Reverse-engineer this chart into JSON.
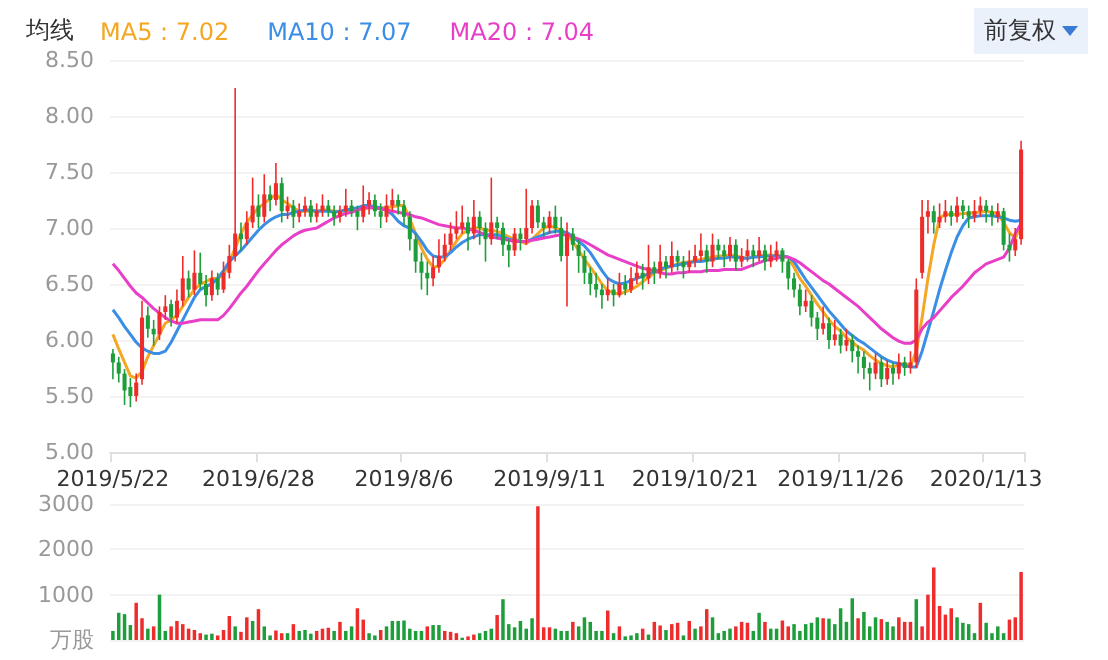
{
  "chart_data": [
    {
      "type": "candlestick",
      "legend_title": "均线",
      "annotations": [
        "前复权"
      ],
      "legend": "top left",
      "grid": "y",
      "marker": "none",
      "categories": [
        "2019/5/22",
        null,
        null,
        null,
        null,
        null,
        null,
        null,
        null,
        null,
        null,
        null,
        null,
        null,
        null,
        null,
        null,
        null,
        null,
        null,
        null,
        null,
        null,
        null,
        null,
        "2019/6/28",
        null,
        null,
        null,
        null,
        null,
        null,
        null,
        null,
        null,
        null,
        null,
        null,
        null,
        null,
        null,
        null,
        null,
        null,
        null,
        null,
        null,
        null,
        null,
        null,
        "2019/8/6",
        null,
        null,
        null,
        null,
        null,
        null,
        null,
        null,
        null,
        null,
        null,
        null,
        null,
        null,
        null,
        null,
        null,
        null,
        null,
        null,
        null,
        null,
        null,
        null,
        "2019/9/11",
        null,
        null,
        null,
        null,
        null,
        null,
        null,
        null,
        null,
        null,
        null,
        null,
        null,
        null,
        null,
        null,
        null,
        null,
        null,
        null,
        null,
        null,
        null,
        null,
        "2019/10/21",
        null,
        null,
        null,
        null,
        null,
        null,
        null,
        null,
        null,
        null,
        null,
        null,
        null,
        null,
        null,
        null,
        null,
        null,
        null,
        null,
        null,
        null,
        null,
        null,
        "2019/11/26",
        null,
        null,
        null,
        null,
        null,
        null,
        null,
        null,
        null,
        null,
        null,
        null,
        null,
        null,
        null,
        null,
        null,
        null,
        null,
        null,
        null,
        null,
        null,
        null,
        "2020/1/13",
        null,
        null,
        null,
        null,
        null,
        null
      ],
      "ylim": [
        5,
        8.5
      ],
      "yticks": [
        {
          "value": 5,
          "label": "5.00"
        },
        {
          "value": 5.5,
          "label": "5.50"
        },
        {
          "value": 6,
          "label": "6.00"
        },
        {
          "value": 6.5,
          "label": "6.50"
        },
        {
          "value": 7,
          "label": "7.00"
        },
        {
          "value": 7.5,
          "label": "7.50"
        },
        {
          "value": 8,
          "label": "8.00"
        },
        {
          "value": 8.5,
          "label": "8.50"
        }
      ],
      "ohlc": [
        [
          5.88,
          5.92,
          5.65,
          5.8
        ],
        [
          5.8,
          5.85,
          5.62,
          5.7
        ],
        [
          5.7,
          5.74,
          5.42,
          5.55
        ],
        [
          5.58,
          5.66,
          5.4,
          5.5
        ],
        [
          5.5,
          5.7,
          5.45,
          5.62
        ],
        [
          5.65,
          6.35,
          5.6,
          6.2
        ],
        [
          6.22,
          6.3,
          6.02,
          6.1
        ],
        [
          6.1,
          6.18,
          5.95,
          6.05
        ],
        [
          6.05,
          6.3,
          6.0,
          6.25
        ],
        [
          6.25,
          6.4,
          6.18,
          6.3
        ],
        [
          6.32,
          6.36,
          6.12,
          6.2
        ],
        [
          6.2,
          6.45,
          6.15,
          6.35
        ],
        [
          6.35,
          6.75,
          6.3,
          6.55
        ],
        [
          6.55,
          6.62,
          6.38,
          6.45
        ],
        [
          6.45,
          6.8,
          6.4,
          6.6
        ],
        [
          6.6,
          6.78,
          6.45,
          6.5
        ],
        [
          6.5,
          6.58,
          6.3,
          6.4
        ],
        [
          6.4,
          6.62,
          6.35,
          6.55
        ],
        [
          6.55,
          6.6,
          6.4,
          6.45
        ],
        [
          6.45,
          6.7,
          6.42,
          6.6
        ],
        [
          6.6,
          6.85,
          6.55,
          6.75
        ],
        [
          6.75,
          8.25,
          6.7,
          6.95
        ],
        [
          6.95,
          7.05,
          6.8,
          6.9
        ],
        [
          6.9,
          7.15,
          6.85,
          7.05
        ],
        [
          7.05,
          7.45,
          7.0,
          7.2
        ],
        [
          7.2,
          7.3,
          7.0,
          7.1
        ],
        [
          7.1,
          7.48,
          7.05,
          7.3
        ],
        [
          7.3,
          7.38,
          7.15,
          7.25
        ],
        [
          7.25,
          7.58,
          7.2,
          7.4
        ],
        [
          7.4,
          7.45,
          7.05,
          7.15
        ],
        [
          7.15,
          7.28,
          7.08,
          7.2
        ],
        [
          7.2,
          7.25,
          7.0,
          7.1
        ],
        [
          7.1,
          7.22,
          7.05,
          7.15
        ],
        [
          7.15,
          7.28,
          7.1,
          7.2
        ],
        [
          7.2,
          7.25,
          7.05,
          7.1
        ],
        [
          7.1,
          7.22,
          7.05,
          7.15
        ],
        [
          7.15,
          7.3,
          7.1,
          7.2
        ],
        [
          7.2,
          7.25,
          7.1,
          7.15
        ],
        [
          7.15,
          7.2,
          7.02,
          7.1
        ],
        [
          7.1,
          7.2,
          7.05,
          7.15
        ],
        [
          7.15,
          7.35,
          7.1,
          7.2
        ],
        [
          7.2,
          7.25,
          7.1,
          7.15
        ],
        [
          7.15,
          7.2,
          6.98,
          7.1
        ],
        [
          7.1,
          7.38,
          7.05,
          7.2
        ],
        [
          7.2,
          7.32,
          7.12,
          7.25
        ],
        [
          7.25,
          7.3,
          7.1,
          7.15
        ],
        [
          7.15,
          7.22,
          7.0,
          7.1
        ],
        [
          7.1,
          7.3,
          7.05,
          7.2
        ],
        [
          7.2,
          7.35,
          7.15,
          7.25
        ],
        [
          7.25,
          7.3,
          7.12,
          7.2
        ],
        [
          7.2,
          7.25,
          7.02,
          7.1
        ],
        [
          7.1,
          7.15,
          6.8,
          6.9
        ],
        [
          6.9,
          6.95,
          6.6,
          6.7
        ],
        [
          6.7,
          6.78,
          6.45,
          6.6
        ],
        [
          6.6,
          6.7,
          6.4,
          6.55
        ],
        [
          6.55,
          6.75,
          6.48,
          6.65
        ],
        [
          6.65,
          6.9,
          6.6,
          6.75
        ],
        [
          6.75,
          6.95,
          6.7,
          6.85
        ],
        [
          6.85,
          7.05,
          6.8,
          6.95
        ],
        [
          6.95,
          7.15,
          6.9,
          7.0
        ],
        [
          7.0,
          7.2,
          6.95,
          7.05
        ],
        [
          7.05,
          7.1,
          6.8,
          6.95
        ],
        [
          6.95,
          7.25,
          6.9,
          7.1
        ],
        [
          7.1,
          7.15,
          6.85,
          7.0
        ],
        [
          7.0,
          7.05,
          6.7,
          6.9
        ],
        [
          6.9,
          7.45,
          6.85,
          7.05
        ],
        [
          7.05,
          7.1,
          6.9,
          7.0
        ],
        [
          7.0,
          7.05,
          6.75,
          6.85
        ],
        [
          6.85,
          6.9,
          6.65,
          6.8
        ],
        [
          6.8,
          7.0,
          6.75,
          6.95
        ],
        [
          6.95,
          7.0,
          6.8,
          6.9
        ],
        [
          6.9,
          7.35,
          6.85,
          7.0
        ],
        [
          7.0,
          7.25,
          6.95,
          7.2
        ],
        [
          7.2,
          7.25,
          7.0,
          7.05
        ],
        [
          7.05,
          7.1,
          6.92,
          7.0
        ],
        [
          7.0,
          7.15,
          6.95,
          7.1
        ],
        [
          7.1,
          7.2,
          6.95,
          7.0
        ],
        [
          7.0,
          7.1,
          6.7,
          6.75
        ],
        [
          6.75,
          7.05,
          6.3,
          6.95
        ],
        [
          6.95,
          7.0,
          6.8,
          6.85
        ],
        [
          6.85,
          6.9,
          6.6,
          6.75
        ],
        [
          6.75,
          6.8,
          6.5,
          6.6
        ],
        [
          6.6,
          6.65,
          6.4,
          6.5
        ],
        [
          6.5,
          6.6,
          6.38,
          6.45
        ],
        [
          6.45,
          6.5,
          6.28,
          6.4
        ],
        [
          6.4,
          6.55,
          6.35,
          6.45
        ],
        [
          6.45,
          6.5,
          6.3,
          6.4
        ],
        [
          6.4,
          6.6,
          6.38,
          6.5
        ],
        [
          6.5,
          6.58,
          6.4,
          6.45
        ],
        [
          6.45,
          6.65,
          6.42,
          6.55
        ],
        [
          6.55,
          6.7,
          6.5,
          6.6
        ],
        [
          6.6,
          6.68,
          6.45,
          6.55
        ],
        [
          6.55,
          6.85,
          6.5,
          6.65
        ],
        [
          6.65,
          6.7,
          6.5,
          6.6
        ],
        [
          6.6,
          6.85,
          6.55,
          6.7
        ],
        [
          6.7,
          6.75,
          6.55,
          6.65
        ],
        [
          6.65,
          6.88,
          6.6,
          6.75
        ],
        [
          6.75,
          6.8,
          6.62,
          6.7
        ],
        [
          6.7,
          6.75,
          6.55,
          6.65
        ],
        [
          6.65,
          6.8,
          6.6,
          6.7
        ],
        [
          6.7,
          6.85,
          6.65,
          6.75
        ],
        [
          6.75,
          6.95,
          6.7,
          6.8
        ],
        [
          6.8,
          6.85,
          6.6,
          6.7
        ],
        [
          6.7,
          6.95,
          6.65,
          6.85
        ],
        [
          6.85,
          6.9,
          6.72,
          6.8
        ],
        [
          6.8,
          6.85,
          6.65,
          6.75
        ],
        [
          6.75,
          6.92,
          6.7,
          6.85
        ],
        [
          6.85,
          6.9,
          6.62,
          6.7
        ],
        [
          6.7,
          6.82,
          6.65,
          6.75
        ],
        [
          6.75,
          6.9,
          6.7,
          6.8
        ],
        [
          6.8,
          6.85,
          6.65,
          6.75
        ],
        [
          6.75,
          6.92,
          6.7,
          6.8
        ],
        [
          6.8,
          6.85,
          6.62,
          6.7
        ],
        [
          6.7,
          6.85,
          6.65,
          6.75
        ],
        [
          6.75,
          6.88,
          6.7,
          6.8
        ],
        [
          6.8,
          6.82,
          6.6,
          6.7
        ],
        [
          6.7,
          6.72,
          6.45,
          6.55
        ],
        [
          6.55,
          6.6,
          6.38,
          6.45
        ],
        [
          6.45,
          6.5,
          6.22,
          6.3
        ],
        [
          6.3,
          6.45,
          6.25,
          6.35
        ],
        [
          6.35,
          6.4,
          6.12,
          6.2
        ],
        [
          6.2,
          6.25,
          6.0,
          6.1
        ],
        [
          6.1,
          6.3,
          6.05,
          6.15
        ],
        [
          6.15,
          6.2,
          5.92,
          6.0
        ],
        [
          6.0,
          6.18,
          5.95,
          6.05
        ],
        [
          6.05,
          6.1,
          5.88,
          5.95
        ],
        [
          5.95,
          6.1,
          5.9,
          6.0
        ],
        [
          6.0,
          6.05,
          5.8,
          5.9
        ],
        [
          5.9,
          5.95,
          5.7,
          5.85
        ],
        [
          5.85,
          5.9,
          5.65,
          5.75
        ],
        [
          5.75,
          5.8,
          5.55,
          5.7
        ],
        [
          5.7,
          5.88,
          5.65,
          5.8
        ],
        [
          5.8,
          5.85,
          5.58,
          5.65
        ],
        [
          5.65,
          5.82,
          5.6,
          5.75
        ],
        [
          5.75,
          5.8,
          5.6,
          5.7
        ],
        [
          5.7,
          5.88,
          5.65,
          5.8
        ],
        [
          5.8,
          5.85,
          5.68,
          5.75
        ],
        [
          5.75,
          5.9,
          5.7,
          5.8
        ],
        [
          5.8,
          6.55,
          5.75,
          6.45
        ],
        [
          6.6,
          7.25,
          6.55,
          7.1
        ],
        [
          7.1,
          7.25,
          6.95,
          7.15
        ],
        [
          7.15,
          7.2,
          6.95,
          7.05
        ],
        [
          7.05,
          7.22,
          7.0,
          7.1
        ],
        [
          7.1,
          7.25,
          7.05,
          7.15
        ],
        [
          7.15,
          7.2,
          7.02,
          7.1
        ],
        [
          7.1,
          7.28,
          7.05,
          7.2
        ],
        [
          7.2,
          7.25,
          7.08,
          7.15
        ],
        [
          7.15,
          7.2,
          7.0,
          7.1
        ],
        [
          7.1,
          7.25,
          7.05,
          7.15
        ],
        [
          7.15,
          7.28,
          7.1,
          7.2
        ],
        [
          7.2,
          7.25,
          7.05,
          7.15
        ],
        [
          7.15,
          7.2,
          7.02,
          7.1
        ],
        [
          7.1,
          7.22,
          7.05,
          7.15
        ],
        [
          7.15,
          7.18,
          6.8,
          6.85
        ],
        [
          6.85,
          6.95,
          6.7,
          6.8
        ],
        [
          6.8,
          7.0,
          6.75,
          6.9
        ],
        [
          6.9,
          7.78,
          6.85,
          7.7
        ]
      ],
      "series": [
        {
          "type": "line",
          "name": "MA5 : 7.02",
          "color": "#f5a623",
          "values": [
            6.05,
            5.92,
            5.8,
            5.68,
            5.66,
            5.72,
            5.85,
            5.95,
            6.05,
            6.15,
            6.18,
            6.22,
            6.3,
            6.38,
            6.45,
            6.5,
            6.52,
            6.55,
            6.55,
            6.58,
            6.7,
            6.82,
            6.95,
            7.05,
            7.12,
            7.18,
            7.22,
            7.26,
            7.3,
            7.25,
            7.22,
            7.18,
            7.15,
            7.15,
            7.15,
            7.15,
            7.16,
            7.16,
            7.15,
            7.15,
            7.15,
            7.16,
            7.16,
            7.17,
            7.18,
            7.18,
            7.18,
            7.18,
            7.19,
            7.2,
            7.2,
            7.08,
            6.95,
            6.82,
            6.72,
            6.65,
            6.66,
            6.72,
            6.8,
            6.88,
            6.95,
            6.98,
            7.0,
            7.0,
            6.98,
            6.98,
            6.97,
            6.95,
            6.92,
            6.9,
            6.88,
            6.86,
            6.9,
            6.95,
            7.0,
            7.02,
            7.0,
            6.98,
            6.95,
            6.88,
            6.8,
            6.72,
            6.65,
            6.58,
            6.5,
            6.44,
            6.42,
            6.41,
            6.43,
            6.45,
            6.48,
            6.52,
            6.56,
            6.6,
            6.62,
            6.64,
            6.66,
            6.68,
            6.69,
            6.7,
            6.71,
            6.72,
            6.73,
            6.74,
            6.75,
            6.75,
            6.76,
            6.75,
            6.74,
            6.73,
            6.74,
            6.75,
            6.76,
            6.76,
            6.75,
            6.75,
            6.74,
            6.65,
            6.55,
            6.48,
            6.4,
            6.32,
            6.25,
            6.18,
            6.12,
            6.08,
            6.02,
            5.98,
            5.94,
            5.91,
            5.86,
            5.82,
            5.79,
            5.77,
            5.76,
            5.78,
            5.79,
            5.77,
            5.9,
            6.2,
            6.55,
            6.85,
            7.09,
            7.12,
            7.12,
            7.12,
            7.13,
            7.13,
            7.14,
            7.14,
            7.15,
            7.14,
            7.13,
            7.05,
            6.96,
            6.91,
            7.02
          ]
        },
        {
          "type": "line",
          "name": "MA10 : 7.07",
          "color": "#3a8ee6",
          "values": [
            6.27,
            6.2,
            6.12,
            6.05,
            5.98,
            5.93,
            5.9,
            5.88,
            5.88,
            5.9,
            5.98,
            6.08,
            6.18,
            6.28,
            6.38,
            6.45,
            6.48,
            6.5,
            6.55,
            6.62,
            6.7,
            6.75,
            6.8,
            6.86,
            6.92,
            6.98,
            7.03,
            7.07,
            7.1,
            7.12,
            7.12,
            7.14,
            7.15,
            7.16,
            7.16,
            7.15,
            7.15,
            7.15,
            7.14,
            7.15,
            7.16,
            7.17,
            7.18,
            7.2,
            7.2,
            7.19,
            7.18,
            7.16,
            7.12,
            7.06,
            7.02,
            7.0,
            6.95,
            6.88,
            6.8,
            6.75,
            6.74,
            6.74,
            6.78,
            6.83,
            6.87,
            6.9,
            6.92,
            6.94,
            6.94,
            6.94,
            6.94,
            6.92,
            6.9,
            6.89,
            6.88,
            6.88,
            6.9,
            6.92,
            6.94,
            6.96,
            6.97,
            6.97,
            6.96,
            6.92,
            6.88,
            6.84,
            6.78,
            6.7,
            6.62,
            6.55,
            6.52,
            6.5,
            6.51,
            6.53,
            6.55,
            6.57,
            6.59,
            6.61,
            6.63,
            6.65,
            6.66,
            6.67,
            6.68,
            6.69,
            6.7,
            6.7,
            6.71,
            6.72,
            6.73,
            6.73,
            6.74,
            6.74,
            6.73,
            6.73,
            6.74,
            6.74,
            6.75,
            6.75,
            6.75,
            6.75,
            6.74,
            6.7,
            6.62,
            6.54,
            6.47,
            6.4,
            6.33,
            6.26,
            6.2,
            6.14,
            6.08,
            6.04,
            6.0,
            5.97,
            5.93,
            5.89,
            5.85,
            5.82,
            5.8,
            5.79,
            5.77,
            5.76,
            5.76,
            5.9,
            6.08,
            6.26,
            6.45,
            6.62,
            6.78,
            6.92,
            7.02,
            7.09,
            7.1,
            7.11,
            7.11,
            7.11,
            7.1,
            7.09,
            7.07,
            7.06,
            7.07
          ]
        },
        {
          "type": "line",
          "name": "MA20 : 7.04",
          "color": "#e83ec8",
          "values": [
            6.68,
            6.62,
            6.55,
            6.48,
            6.42,
            6.38,
            6.33,
            6.28,
            6.24,
            6.2,
            6.17,
            6.15,
            6.15,
            6.16,
            6.17,
            6.18,
            6.18,
            6.18,
            6.18,
            6.22,
            6.28,
            6.35,
            6.42,
            6.48,
            6.55,
            6.62,
            6.68,
            6.74,
            6.8,
            6.85,
            6.89,
            6.93,
            6.96,
            6.98,
            6.99,
            7.0,
            7.03,
            7.06,
            7.09,
            7.11,
            7.13,
            7.14,
            7.16,
            7.18,
            7.18,
            7.18,
            7.17,
            7.16,
            7.15,
            7.14,
            7.13,
            7.12,
            7.1,
            7.09,
            7.07,
            7.05,
            7.03,
            7.02,
            7.01,
            7.0,
            7.0,
            6.99,
            6.98,
            6.96,
            6.94,
            6.92,
            6.91,
            6.9,
            6.89,
            6.88,
            6.88,
            6.88,
            6.89,
            6.9,
            6.91,
            6.92,
            6.93,
            6.94,
            6.94,
            6.92,
            6.9,
            6.88,
            6.85,
            6.82,
            6.79,
            6.76,
            6.74,
            6.72,
            6.7,
            6.68,
            6.66,
            6.64,
            6.63,
            6.62,
            6.6,
            6.59,
            6.59,
            6.6,
            6.6,
            6.61,
            6.61,
            6.61,
            6.62,
            6.62,
            6.62,
            6.63,
            6.63,
            6.63,
            6.63,
            6.65,
            6.67,
            6.69,
            6.71,
            6.72,
            6.73,
            6.74,
            6.74,
            6.72,
            6.69,
            6.65,
            6.61,
            6.57,
            6.53,
            6.5,
            6.46,
            6.42,
            6.38,
            6.34,
            6.3,
            6.25,
            6.2,
            6.15,
            6.1,
            6.06,
            6.02,
            5.99,
            5.97,
            5.97,
            6.0,
            6.1,
            6.16,
            6.2,
            6.26,
            6.32,
            6.38,
            6.43,
            6.48,
            6.54,
            6.6,
            6.64,
            6.68,
            6.7,
            6.72,
            6.74,
            6.82,
            6.95,
            7.04
          ]
        }
      ]
    },
    {
      "type": "bar",
      "grid": "y",
      "tick_labels": "y",
      "categories": [
        null,
        null,
        null,
        null,
        null,
        null,
        null,
        null,
        null,
        null,
        null,
        null,
        null,
        null,
        null,
        null,
        null,
        null,
        null,
        null,
        null,
        null,
        null,
        null,
        null,
        null,
        null,
        null,
        null,
        null,
        null,
        null,
        null,
        null,
        null,
        null,
        null,
        null,
        null,
        null,
        null,
        null,
        null,
        null,
        null,
        null,
        null,
        null,
        null,
        null,
        null,
        null,
        null,
        null,
        null,
        null,
        null,
        null,
        null,
        null,
        null,
        null,
        null,
        null,
        null,
        null,
        null,
        null,
        null,
        null,
        null,
        null,
        null,
        null,
        null,
        null,
        null,
        null,
        null,
        null,
        null,
        null,
        null,
        null,
        null,
        null,
        null,
        null,
        null,
        null,
        null,
        null,
        null,
        null,
        null,
        null,
        null,
        null,
        null,
        null,
        null,
        null,
        null,
        null,
        null,
        null,
        null,
        null,
        null,
        null,
        null,
        null,
        null,
        null,
        null,
        null,
        null,
        null,
        null,
        null,
        null,
        null,
        null,
        null,
        null,
        null,
        null,
        null,
        null,
        null,
        null,
        null,
        null,
        null,
        null,
        null,
        null,
        null,
        null,
        null,
        null,
        null,
        null,
        null,
        null,
        null,
        null,
        null,
        null,
        null,
        null,
        null,
        null,
        null,
        null,
        null,
        null
      ],
      "ylim": [
        0,
        3000
      ],
      "yticks": [
        {
          "value": 0,
          "label": "万股"
        },
        1000,
        2000,
        3000
      ],
      "values": [
        200,
        600,
        570,
        330,
        820,
        480,
        250,
        300,
        1000,
        200,
        300,
        420,
        350,
        250,
        220,
        150,
        120,
        140,
        100,
        220,
        530,
        300,
        180,
        500,
        420,
        680,
        300,
        100,
        210,
        150,
        150,
        350,
        200,
        220,
        140,
        200,
        250,
        270,
        200,
        400,
        200,
        300,
        700,
        450,
        150,
        100,
        220,
        300,
        420,
        420,
        430,
        250,
        200,
        200,
        300,
        330,
        330,
        200,
        180,
        150,
        50,
        80,
        120,
        150,
        200,
        250,
        550,
        900,
        350,
        280,
        420,
        250,
        480,
        2950,
        280,
        280,
        250,
        200,
        200,
        400,
        300,
        500,
        400,
        200,
        200,
        650,
        150,
        300,
        80,
        100,
        150,
        250,
        120,
        400,
        320,
        220,
        350,
        380,
        100,
        420,
        250,
        300,
        680,
        500,
        150,
        200,
        250,
        300,
        400,
        380,
        200,
        600,
        400,
        250,
        250,
        430,
        300,
        350,
        200,
        350,
        380,
        500,
        480,
        470,
        350,
        700,
        400,
        920,
        480,
        620,
        300,
        500,
        460,
        400,
        300,
        500,
        400,
        400,
        900,
        300,
        1000,
        1600,
        750,
        560,
        700,
        500,
        380,
        350,
        150,
        820,
        380,
        150,
        300,
        150,
        450,
        500,
        1500
      ],
      "colors": [
        "#1e9e3a",
        "#1e9e3a",
        "#1e9e3a",
        "#1e9e3a",
        "#ee2c2c",
        "#ee2c2c",
        "#1e9e3a",
        "#ee2c2c",
        "#1e9e3a",
        "#1e9e3a",
        "#ee2c2c",
        "#ee2c2c",
        "#ee2c2c",
        "#ee2c2c",
        "#ee2c2c",
        "#ee2c2c",
        "#1e9e3a",
        "#1e9e3a",
        "#ee2c2c",
        "#ee2c2c",
        "#ee2c2c",
        "#1e9e3a",
        "#ee2c2c",
        "#ee2c2c",
        "#1e9e3a",
        "#ee2c2c",
        "#1e9e3a",
        "#1e9e3a",
        "#ee2c2c",
        "#ee2c2c",
        "#1e9e3a",
        "#ee2c2c",
        "#1e9e3a",
        "#1e9e3a",
        "#1e9e3a",
        "#ee2c2c",
        "#ee2c2c",
        "#ee2c2c",
        "#1e9e3a",
        "#ee2c2c",
        "#1e9e3a",
        "#1e9e3a",
        "#ee2c2c",
        "#ee2c2c",
        "#1e9e3a",
        "#1e9e3a",
        "#ee2c2c",
        "#1e9e3a",
        "#1e9e3a",
        "#1e9e3a",
        "#1e9e3a",
        "#1e9e3a",
        "#1e9e3a",
        "#1e9e3a",
        "#ee2c2c",
        "#1e9e3a",
        "#1e9e3a",
        "#ee2c2c",
        "#ee2c2c",
        "#ee2c2c",
        "#1e9e3a",
        "#ee2c2c",
        "#ee2c2c",
        "#1e9e3a",
        "#1e9e3a",
        "#1e9e3a",
        "#ee2c2c",
        "#1e9e3a",
        "#1e9e3a",
        "#1e9e3a",
        "#1e9e3a",
        "#1e9e3a",
        "#1e9e3a",
        "#ee2c2c",
        "#ee2c2c",
        "#ee2c2c",
        "#1e9e3a",
        "#1e9e3a",
        "#1e9e3a",
        "#ee2c2c",
        "#1e9e3a",
        "#1e9e3a",
        "#1e9e3a",
        "#1e9e3a",
        "#1e9e3a",
        "#ee2c2c",
        "#1e9e3a",
        "#ee2c2c",
        "#1e9e3a",
        "#1e9e3a",
        "#1e9e3a",
        "#ee2c2c",
        "#1e9e3a",
        "#ee2c2c",
        "#ee2c2c",
        "#1e9e3a",
        "#ee2c2c",
        "#ee2c2c",
        "#1e9e3a",
        "#ee2c2c",
        "#1e9e3a",
        "#ee2c2c",
        "#ee2c2c",
        "#1e9e3a",
        "#1e9e3a",
        "#1e9e3a",
        "#1e9e3a",
        "#ee2c2c",
        "#ee2c2c",
        "#ee2c2c",
        "#1e9e3a",
        "#1e9e3a",
        "#ee2c2c",
        "#1e9e3a",
        "#1e9e3a",
        "#ee2c2c",
        "#ee2c2c",
        "#1e9e3a",
        "#1e9e3a",
        "#1e9e3a",
        "#1e9e3a",
        "#1e9e3a",
        "#ee2c2c",
        "#1e9e3a",
        "#1e9e3a",
        "#1e9e3a",
        "#1e9e3a",
        "#1e9e3a",
        "#ee2c2c",
        "#1e9e3a",
        "#1e9e3a",
        "#1e9e3a",
        "#ee2c2c",
        "#1e9e3a",
        "#1e9e3a",
        "#ee2c2c",
        "#ee2c2c",
        "#ee2c2c",
        "#1e9e3a",
        "#ee2c2c",
        "#ee2c2c",
        "#ee2c2c",
        "#ee2c2c",
        "#ee2c2c",
        "#ee2c2c",
        "#1e9e3a",
        "#1e9e3a",
        "#1e9e3a",
        "#1e9e3a",
        "#ee2c2c",
        "#1e9e3a",
        "#1e9e3a",
        "#1e9e3a",
        "#1e9e3a",
        "#ee2c2c",
        "#ee2c2c",
        "#ee2c2c"
      ]
    }
  ]
}
